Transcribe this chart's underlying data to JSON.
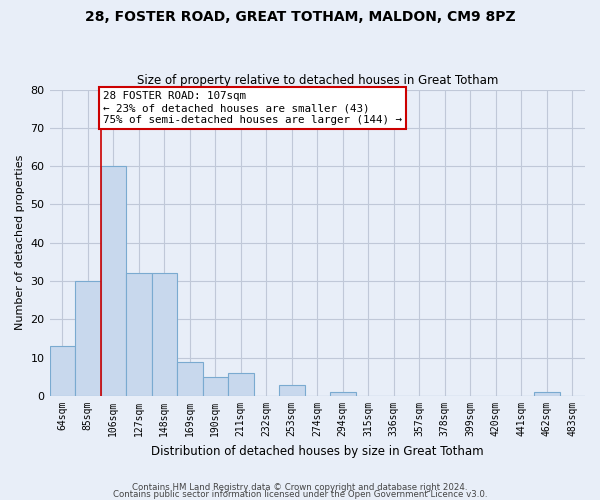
{
  "title": "28, FOSTER ROAD, GREAT TOTHAM, MALDON, CM9 8PZ",
  "subtitle": "Size of property relative to detached houses in Great Totham",
  "xlabel": "Distribution of detached houses by size in Great Totham",
  "ylabel": "Number of detached properties",
  "bar_color": "#c8d8ed",
  "bar_edge_color": "#7aaad0",
  "background_color": "#e8eef8",
  "plot_bg_color": "#e8eef8",
  "categories": [
    "64sqm",
    "85sqm",
    "106sqm",
    "127sqm",
    "148sqm",
    "169sqm",
    "190sqm",
    "211sqm",
    "232sqm",
    "253sqm",
    "274sqm",
    "294sqm",
    "315sqm",
    "336sqm",
    "357sqm",
    "378sqm",
    "399sqm",
    "420sqm",
    "441sqm",
    "462sqm",
    "483sqm"
  ],
  "values": [
    13,
    30,
    60,
    32,
    32,
    9,
    5,
    6,
    0,
    3,
    0,
    1,
    0,
    0,
    0,
    0,
    0,
    0,
    0,
    1,
    0
  ],
  "ylim": [
    0,
    80
  ],
  "yticks": [
    0,
    10,
    20,
    30,
    40,
    50,
    60,
    70,
    80
  ],
  "property_line_color": "#cc0000",
  "annotation_line1": "28 FOSTER ROAD: 107sqm",
  "annotation_line2": "← 23% of detached houses are smaller (43)",
  "annotation_line3": "75% of semi-detached houses are larger (144) →",
  "annotation_box_color": "#ffffff",
  "annotation_box_edge": "#cc0000",
  "footer_line1": "Contains HM Land Registry data © Crown copyright and database right 2024.",
  "footer_line2": "Contains public sector information licensed under the Open Government Licence v3.0.",
  "grid_color": "#c0c8d8"
}
